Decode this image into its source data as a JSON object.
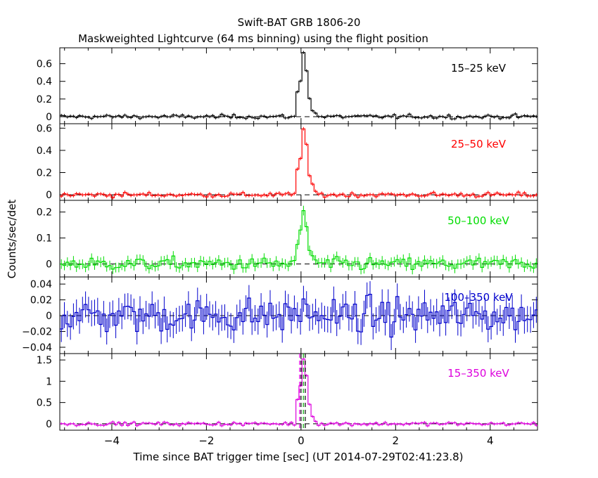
{
  "chart_data": {
    "type": "line",
    "title": "Swift-BAT GRB 1806-20",
    "subtitle": "Maskweighted Lightcurve (64 ms binning) using the flight position",
    "xlabel": "Time since BAT trigger time [sec] (UT 2014-07-29T02:41:23.8)",
    "ylabel": "Counts/sec/det",
    "xlim": [
      -5.1,
      5.0
    ],
    "xticks": [
      -4,
      -2,
      0,
      2,
      4
    ],
    "xtick_labels": [
      "−4",
      "−2",
      "0",
      "2",
      "4"
    ],
    "grid": false,
    "panels": [
      {
        "band": "15–25 keV",
        "color": "#000000",
        "ylim": [
          -0.08,
          0.78
        ],
        "yticks": [
          0,
          0.2,
          0.4,
          0.6
        ],
        "ytick_labels": [
          "0",
          "0.2",
          "0.4",
          "0.6"
        ],
        "noise": 0.016,
        "pulse_peak": 0.72
      },
      {
        "band": "25–50 keV",
        "color": "#ff0000",
        "ylim": [
          -0.05,
          0.64
        ],
        "yticks": [
          0,
          0.2,
          0.4,
          0.6
        ],
        "ytick_labels": [
          "0",
          "0.2",
          "0.4",
          "0.6"
        ],
        "noise": 0.015,
        "pulse_peak": 0.6
      },
      {
        "band": "50–100 keV",
        "color": "#00dd00",
        "ylim": [
          -0.05,
          0.245
        ],
        "yticks": [
          0,
          0.1,
          0.2
        ],
        "ytick_labels": [
          "0",
          "0.1",
          "0.2"
        ],
        "noise": 0.017,
        "pulse_peak": 0.2
      },
      {
        "band": "100–350 keV",
        "color": "#0000cc",
        "ylim": [
          -0.048,
          0.049
        ],
        "yticks": [
          -0.04,
          -0.02,
          0,
          0.02,
          0.04
        ],
        "ytick_labels": [
          "−0.04",
          "−0.02",
          "0",
          "0.02",
          "0.04"
        ],
        "noise": 0.015,
        "pulse_peak": 0.01
      },
      {
        "band": "15–350 keV",
        "color": "#dd00dd",
        "ylim": [
          -0.15,
          1.65
        ],
        "yticks": [
          0,
          0.5,
          1,
          1.5
        ],
        "ytick_labels": [
          "0",
          "0.5",
          "1",
          "1.5"
        ],
        "noise": 0.03,
        "pulse_peak": 1.55
      }
    ],
    "vertical_markers_sec": [
      -0.03,
      0.0,
      0.05,
      0.09
    ]
  }
}
